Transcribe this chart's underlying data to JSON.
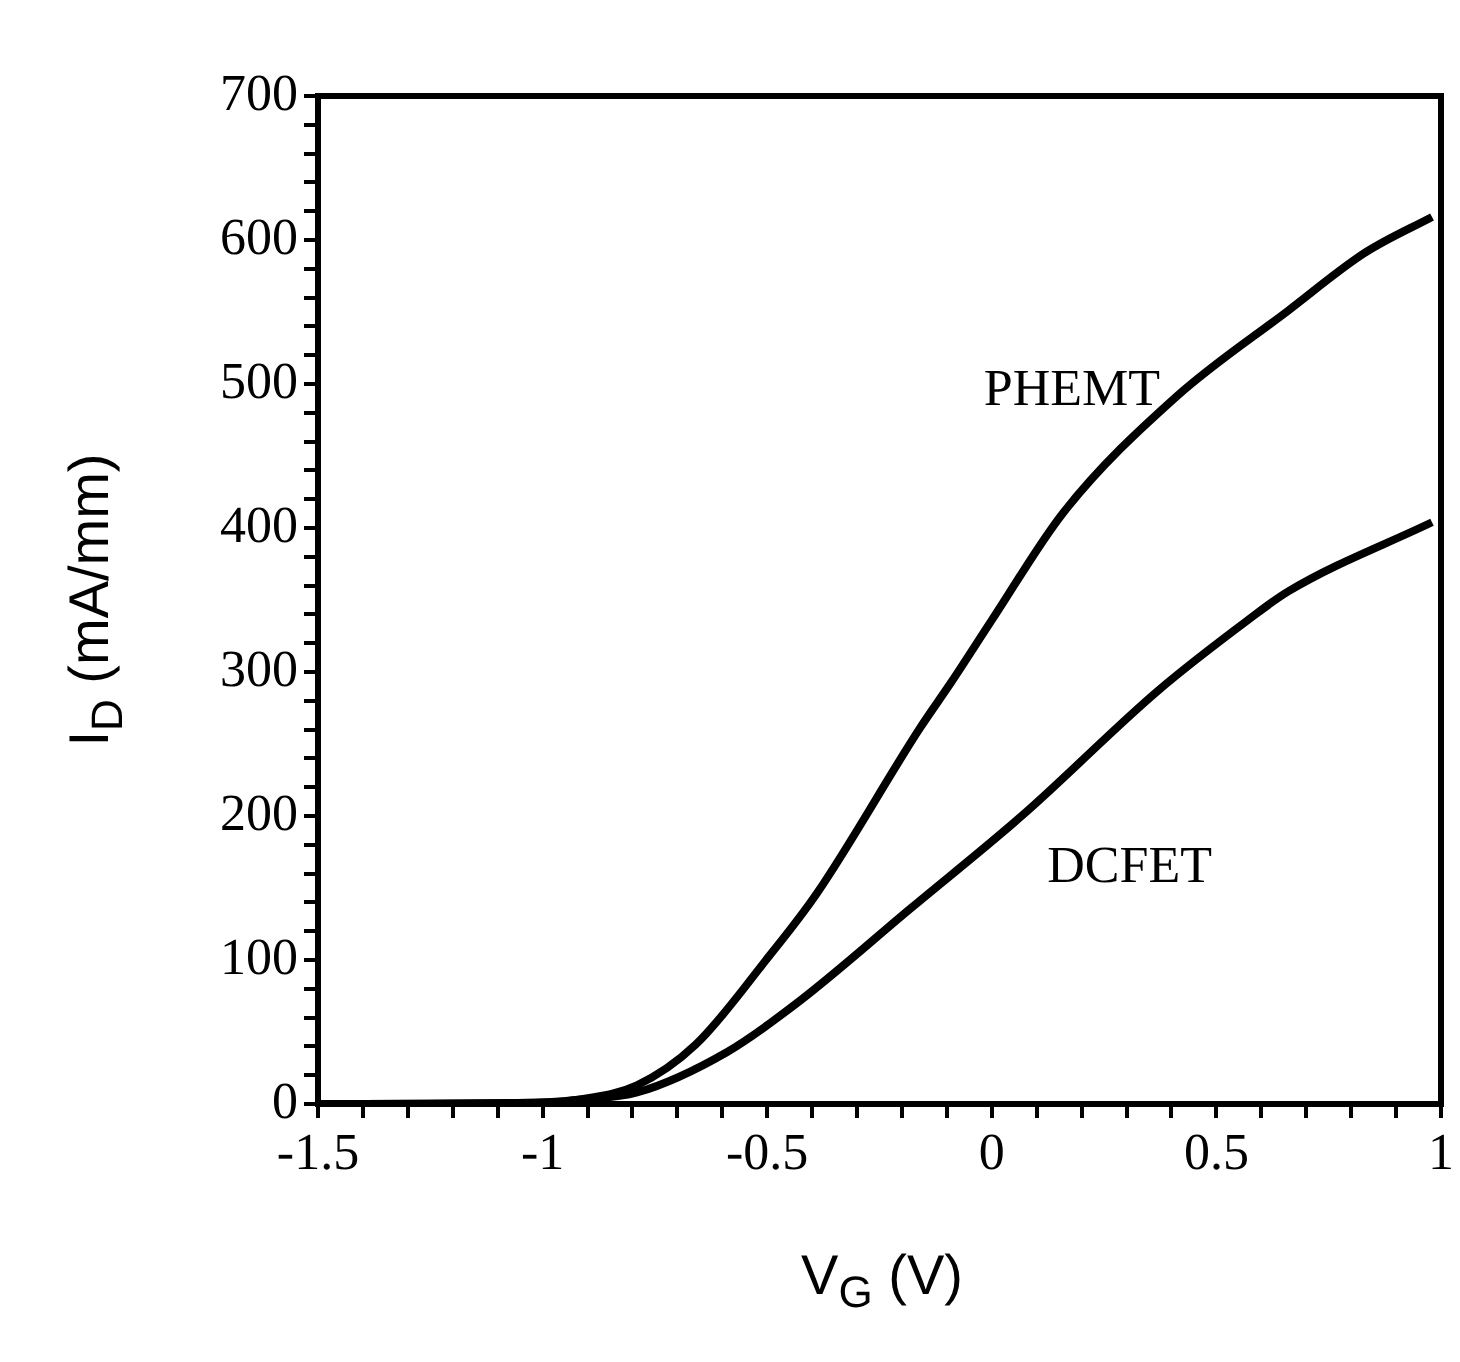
{
  "chart_data": {
    "type": "line",
    "xlabel": "V$_{G}$ (V)",
    "ylabel": "I$_{D}$ (mA/mm)",
    "xlim": [
      -1.5,
      1
    ],
    "ylim": [
      0,
      700
    ],
    "xticks": [
      -1.5,
      {
        "value": -1.4,
        "label": null
      },
      {
        "value": -1.3,
        "label": null
      },
      {
        "value": -1.2,
        "label": null
      },
      {
        "value": -1.1,
        "label": null
      },
      -1,
      {
        "value": -0.9,
        "label": null
      },
      {
        "value": -0.8,
        "label": null
      },
      {
        "value": -0.7,
        "label": null
      },
      {
        "value": -0.6,
        "label": null
      },
      -0.5,
      {
        "value": -0.4,
        "label": null
      },
      {
        "value": -0.3,
        "label": null
      },
      {
        "value": -0.2,
        "label": null
      },
      {
        "value": -0.1,
        "label": null
      },
      0,
      {
        "value": 0.1,
        "label": null
      },
      {
        "value": 0.2,
        "label": null
      },
      {
        "value": 0.3,
        "label": null
      },
      {
        "value": 0.4,
        "label": null
      },
      0.5,
      {
        "value": 0.6,
        "label": null
      },
      {
        "value": 0.7,
        "label": null
      },
      {
        "value": 0.8,
        "label": null
      },
      {
        "value": 0.9,
        "label": null
      },
      1
    ],
    "yticks": [
      0,
      {
        "value": 20,
        "label": null
      },
      {
        "value": 40,
        "label": null
      },
      {
        "value": 60,
        "label": null
      },
      {
        "value": 80,
        "label": null
      },
      100,
      {
        "value": 120,
        "label": null
      },
      {
        "value": 140,
        "label": null
      },
      {
        "value": 160,
        "label": null
      },
      {
        "value": 180,
        "label": null
      },
      200,
      {
        "value": 220,
        "label": null
      },
      {
        "value": 240,
        "label": null
      },
      {
        "value": 260,
        "label": null
      },
      {
        "value": 280,
        "label": null
      },
      300,
      {
        "value": 320,
        "label": null
      },
      {
        "value": 340,
        "label": null
      },
      {
        "value": 360,
        "label": null
      },
      {
        "value": 380,
        "label": null
      },
      400,
      {
        "value": 420,
        "label": null
      },
      {
        "value": 440,
        "label": null
      },
      {
        "value": 460,
        "label": null
      },
      {
        "value": 480,
        "label": null
      },
      500,
      {
        "value": 520,
        "label": null
      },
      {
        "value": 540,
        "label": null
      },
      {
        "value": 560,
        "label": null
      },
      {
        "value": 580,
        "label": null
      },
      600,
      {
        "value": 620,
        "label": null
      },
      {
        "value": 640,
        "label": null
      },
      {
        "value": 660,
        "label": null
      },
      {
        "value": 680,
        "label": null
      },
      700
    ],
    "grid": false,
    "legend": false,
    "marker": "none",
    "line_style": "solid",
    "series": [
      {
        "name": "PHEMT",
        "color": "#000000",
        "x": [
          -1.5,
          -1,
          -0.92,
          -0.79,
          -0.66,
          -0.5,
          -0.39,
          -0.16,
          -0.09,
          0,
          0.16,
          0.41,
          0.66,
          0.83,
          0.98
        ],
        "values": [
          0,
          1,
          3,
          13,
          41,
          101,
          146,
          261,
          293,
          336,
          411,
          491,
          551,
          591,
          616
        ]
      },
      {
        "name": "DCFET",
        "color": "#000000",
        "x": [
          -1.5,
          -1,
          -0.92,
          -0.79,
          -0.59,
          -0.43,
          -0.18,
          0.07,
          0.37,
          0.57,
          0.66,
          0.98
        ],
        "values": [
          0,
          1,
          3,
          8,
          36,
          71,
          136,
          201,
          287,
          336,
          356,
          404
        ]
      }
    ]
  }
}
